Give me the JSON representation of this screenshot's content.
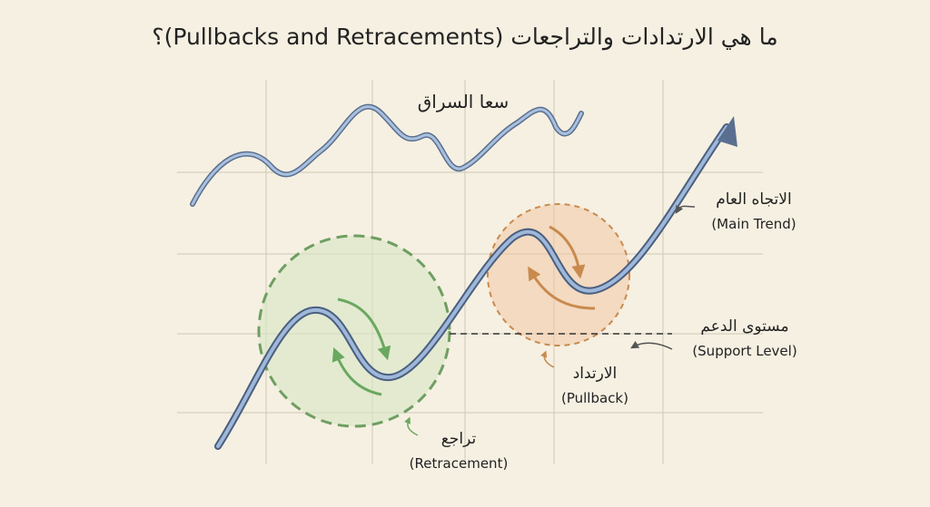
{
  "header": {
    "title": "ما هي الارتدادات والتراجعات (Pullbacks and Retracements)؟"
  },
  "labels": {
    "context": "سعا السراق",
    "main_trend": {
      "ar": "الاتجاه العام",
      "en": "(Main Trend)"
    },
    "support_level": {
      "ar": "مستوى الدعم",
      "en": "(Support Level)"
    },
    "pullback": {
      "ar": "الارتداد",
      "en": "(Pullback)"
    },
    "retracement": {
      "ar": "تراجع",
      "en": "(Retracement)"
    }
  }
}
